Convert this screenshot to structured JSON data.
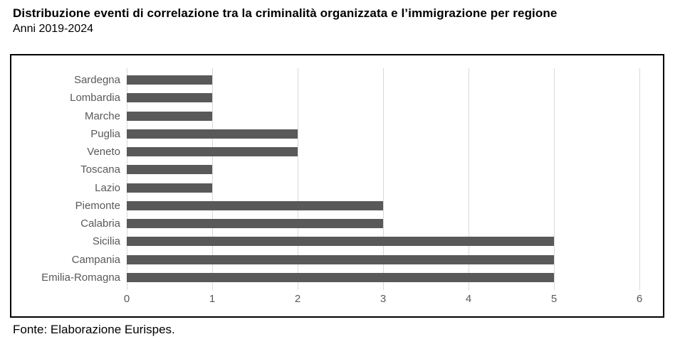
{
  "title": "Distribuzione eventi di correlazione tra la criminalità organizzata e l’immigrazione per regione",
  "subtitle": "Anni 2019-2024",
  "source": "Fonte: Elaborazione Eurispes.",
  "colors": {
    "bar": "#595959",
    "gridline": "#d9d9d9",
    "axis_text": "#595959",
    "border": "#000000",
    "background": "#ffffff"
  },
  "chart_data": {
    "type": "bar",
    "orientation": "horizontal",
    "title": "Distribuzione eventi di correlazione tra la criminalità organizzata e l’immigrazione per regione",
    "subtitle": "Anni 2019-2024",
    "categories": [
      "Sardegna",
      "Lombardia",
      "Marche",
      "Puglia",
      "Veneto",
      "Toscana",
      "Lazio",
      "Piemonte",
      "Calabria",
      "Sicilia",
      "Campania",
      "Emilia-Romagna"
    ],
    "values": [
      1,
      1,
      1,
      2,
      2,
      1,
      1,
      3,
      3,
      5,
      5,
      5
    ],
    "xlabel": "",
    "ylabel": "",
    "xlim": [
      0,
      6
    ],
    "xticks": [
      0,
      1,
      2,
      3,
      4,
      5,
      6
    ],
    "grid": true,
    "legend": false,
    "source_note": "Fonte: Elaborazione Eurispes."
  }
}
